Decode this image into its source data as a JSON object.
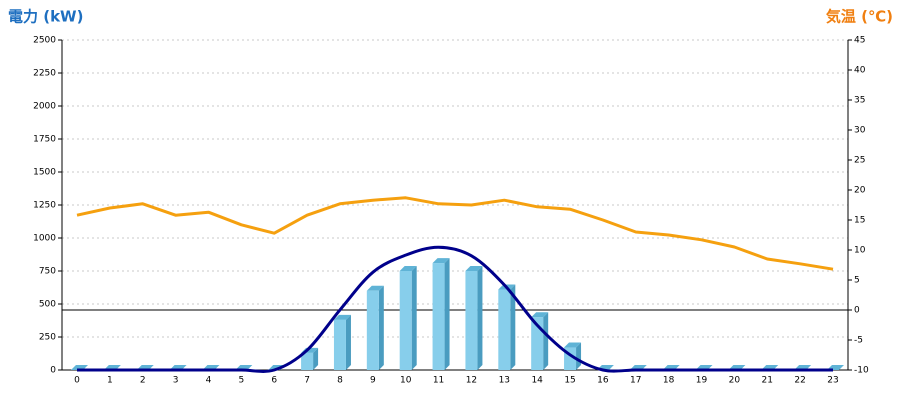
{
  "chart_data": {
    "type": "bar",
    "y_title": "電力 (kW)",
    "y2_title": "気温 (℃)",
    "categories": [
      "0",
      "1",
      "2",
      "3",
      "4",
      "5",
      "6",
      "7",
      "8",
      "9",
      "10",
      "11",
      "12",
      "13",
      "14",
      "15",
      "16",
      "17",
      "18",
      "19",
      "20",
      "21",
      "22",
      "23"
    ],
    "series": [
      {
        "type": "bar",
        "color": "#87ceeb",
        "values": [
          0,
          0,
          0,
          0,
          0,
          0,
          0,
          130,
          380,
          600,
          750,
          810,
          750,
          610,
          400,
          170,
          0,
          0,
          0,
          0,
          0,
          0,
          0,
          0
        ]
      },
      {
        "type": "line",
        "smooth": true,
        "color": "#00008b",
        "values": [
          0,
          0,
          0,
          0,
          0,
          0,
          0,
          150,
          455,
          740,
          870,
          930,
          865,
          645,
          340,
          115,
          0,
          0,
          0,
          0,
          0,
          0,
          0,
          0
        ]
      },
      {
        "type": "line",
        "color": "#f5a00f",
        "axis": "y2",
        "values": [
          15.8,
          17,
          17.7,
          15.8,
          16.3,
          14.2,
          12.8,
          15.8,
          17.7,
          18.3,
          18.7,
          17.7,
          17.5,
          18.3,
          17.2,
          16.8,
          15,
          13,
          12.5,
          11.7,
          10.5,
          8.5,
          7.7,
          6.8
        ]
      }
    ],
    "ylim": [
      0,
      2500
    ],
    "yticks": [
      0,
      250,
      500,
      750,
      1000,
      1250,
      1500,
      1750,
      2000,
      2250,
      2500
    ],
    "y2lim": [
      -10,
      45
    ],
    "y2ticks": [
      -10,
      -5,
      0,
      5,
      10,
      15,
      20,
      25,
      30,
      35,
      40,
      45
    ],
    "grid": true,
    "y_title_color": "#1e6fc0",
    "y2_title_color": "#f07f10"
  }
}
